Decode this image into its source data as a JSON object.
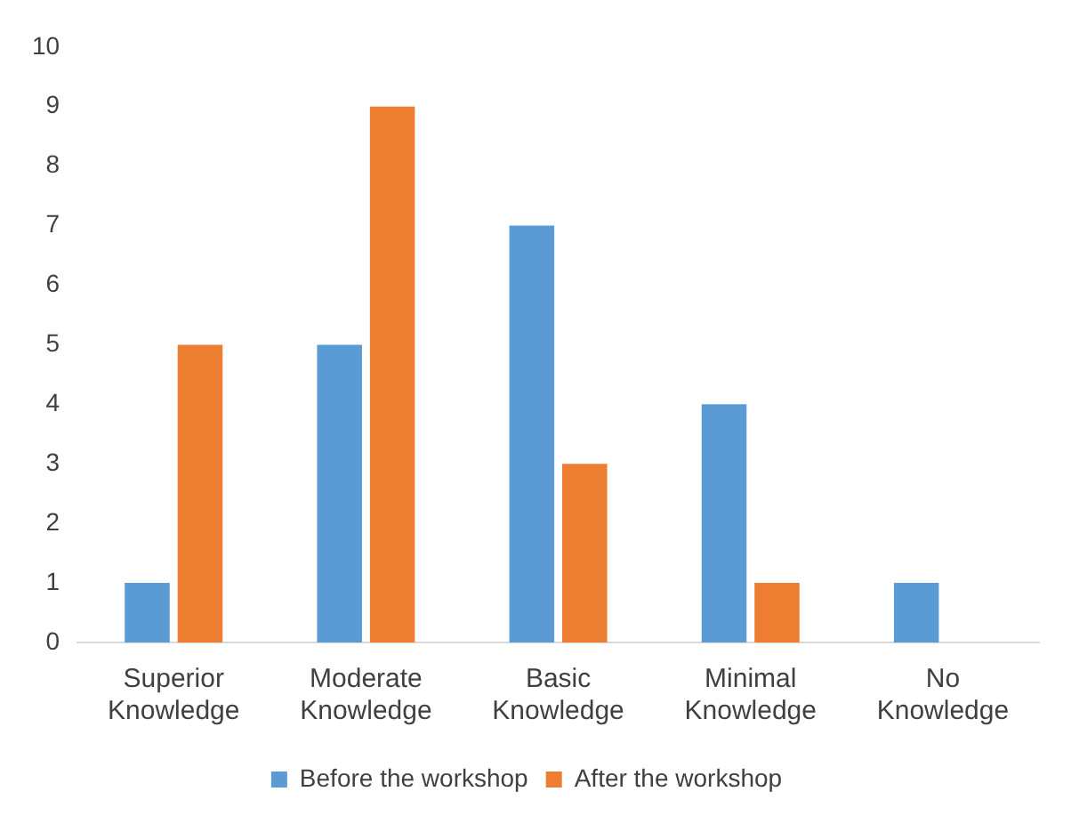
{
  "chart_data": {
    "type": "bar",
    "categories": [
      "Superior Knowledge",
      "Moderate Knowledge",
      "Basic Knowledge",
      "Minimal Knowledge",
      "No Knowledge"
    ],
    "series": [
      {
        "name": "Before the workshop",
        "color": "#5b9bd5",
        "values": [
          1,
          5,
          7,
          4,
          1
        ]
      },
      {
        "name": "After the workshop",
        "color": "#ed7d31",
        "values": [
          5,
          9,
          3,
          1,
          0
        ]
      }
    ],
    "ylim": [
      0,
      10
    ],
    "yticks": [
      0,
      1,
      2,
      3,
      4,
      5,
      6,
      7,
      8,
      9,
      10
    ],
    "grid": false,
    "legend": "bottom"
  }
}
